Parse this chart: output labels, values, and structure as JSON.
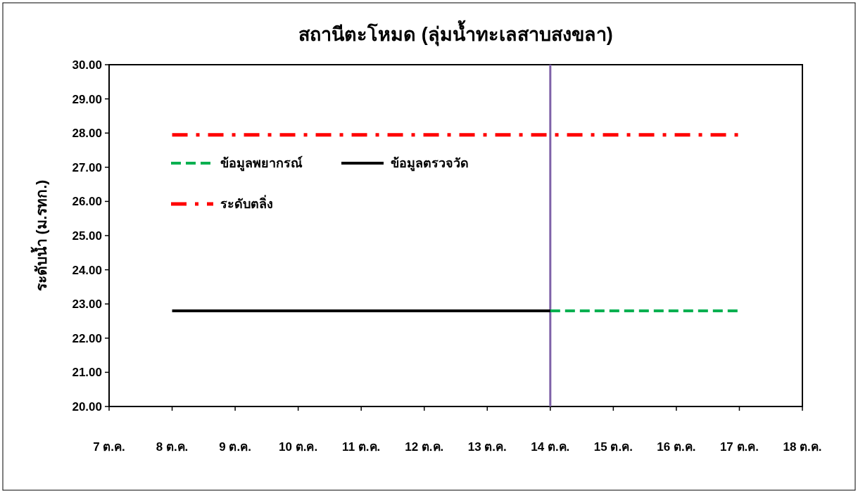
{
  "chart_data": {
    "type": "line",
    "title": "สถานีตะโหมด (ลุ่มน้ำทะเลสาบสงขลา)",
    "ylabel": "ระดับน้ำ (ม.รทก.)",
    "categories": [
      "7 ต.ค.",
      "8 ต.ค.",
      "9 ต.ค.",
      "10 ต.ค.",
      "11 ต.ค.",
      "12 ต.ค.",
      "13 ต.ค.",
      "14 ต.ค.",
      "15 ต.ค.",
      "16 ต.ค.",
      "17 ต.ค.",
      "18 ต.ค."
    ],
    "series": [
      {
        "name": "ข้อมูลพยากรณ์",
        "color": "#00b050",
        "line_style": "dashed",
        "values": [
          null,
          null,
          null,
          null,
          null,
          null,
          null,
          22.8,
          22.8,
          22.8,
          22.8,
          null
        ]
      },
      {
        "name": "ข้อมูลตรวจวัด",
        "color": "#000000",
        "line_style": "solid",
        "values": [
          null,
          22.8,
          22.8,
          22.8,
          22.8,
          22.8,
          22.8,
          22.8,
          null,
          null,
          null,
          null
        ]
      },
      {
        "name": "ระดับตลิ่ง",
        "color": "#ff0000",
        "line_style": "dashdot",
        "values": [
          null,
          27.95,
          27.95,
          27.95,
          27.95,
          27.95,
          27.95,
          27.95,
          27.95,
          27.95,
          27.95,
          null
        ]
      }
    ],
    "ylim": [
      20,
      30
    ],
    "yticks": [
      {
        "value": 20,
        "label": "20.00"
      },
      {
        "value": 21,
        "label": "21.00"
      },
      {
        "value": 22,
        "label": "22.00"
      },
      {
        "value": 23,
        "label": "23.00"
      },
      {
        "value": 24,
        "label": "24.00"
      },
      {
        "value": 25,
        "label": "25.00"
      },
      {
        "value": 26,
        "label": "26.00"
      },
      {
        "value": 27,
        "label": "27.00"
      },
      {
        "value": 28,
        "label": "28.00"
      },
      {
        "value": 29,
        "label": "29.00"
      },
      {
        "value": 30,
        "label": "30.00"
      }
    ],
    "ref_lines": [
      {
        "axis": "x",
        "value": "14 ต.ค.",
        "color": "#7f62a8"
      }
    ],
    "legend": "top left",
    "grid": false,
    "marker": "none"
  }
}
